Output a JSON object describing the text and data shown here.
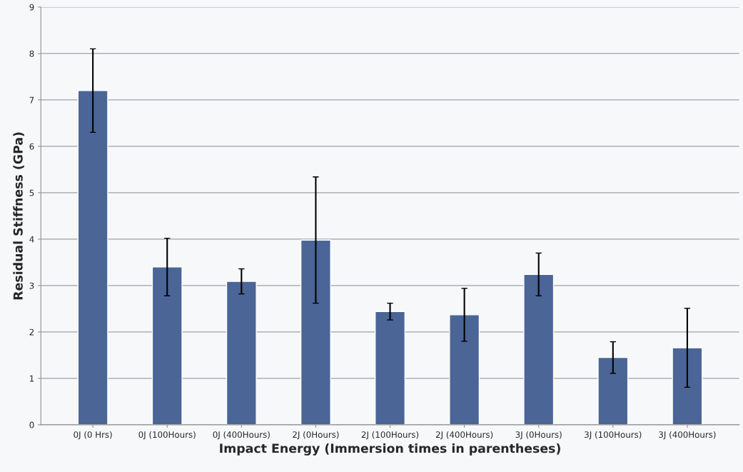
{
  "chart_data": {
    "type": "bar",
    "xlabel": "Impact Energy (Immersion times in parentheses)",
    "ylabel": "Residual Stiffness (GPa)",
    "categories": [
      "0J (0 Hrs)",
      "0J (100Hours)",
      "0J (400Hours)",
      "2J (0Hours)",
      "2J (100Hours)",
      "2J (400Hours)",
      "3J (0Hours)",
      "3J (100Hours)",
      "3J (400Hours)"
    ],
    "values": [
      7.2,
      3.4,
      3.09,
      3.98,
      2.44,
      2.37,
      3.24,
      1.45,
      1.66
    ],
    "errors": [
      0.9,
      0.62,
      0.27,
      1.36,
      0.18,
      0.57,
      0.46,
      0.34,
      0.85
    ],
    "color": "#4a6596",
    "ylim": [
      0,
      9
    ],
    "yticks": [
      0,
      1,
      2,
      3,
      4,
      5,
      6,
      7,
      8,
      9
    ],
    "grid": "y",
    "legend": false
  }
}
